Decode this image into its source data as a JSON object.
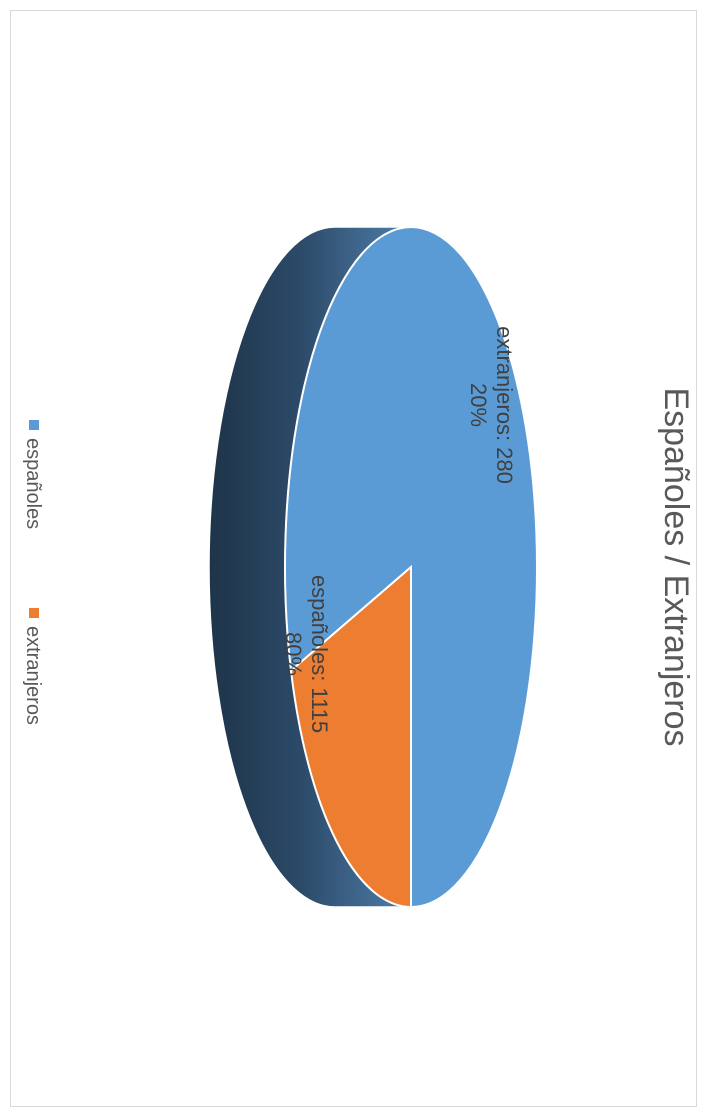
{
  "chart_data": {
    "type": "pie",
    "title": "Españoles / Extranjeros",
    "categories": [
      "españoles",
      "extranjeros"
    ],
    "values": [
      1115,
      280
    ],
    "percent_labels": [
      "80%",
      "20%"
    ],
    "data_labels": [
      "españoles: 1115",
      "extranjeros: 280"
    ],
    "colors": [
      "#5b9bd5",
      "#ed7d31"
    ],
    "side_color": "#2e4d6b",
    "legend": {
      "placement": "bottom",
      "items": [
        "españoles",
        "extranjeros"
      ]
    },
    "style": "3d",
    "orientation": "rotated-90-clockwise"
  }
}
